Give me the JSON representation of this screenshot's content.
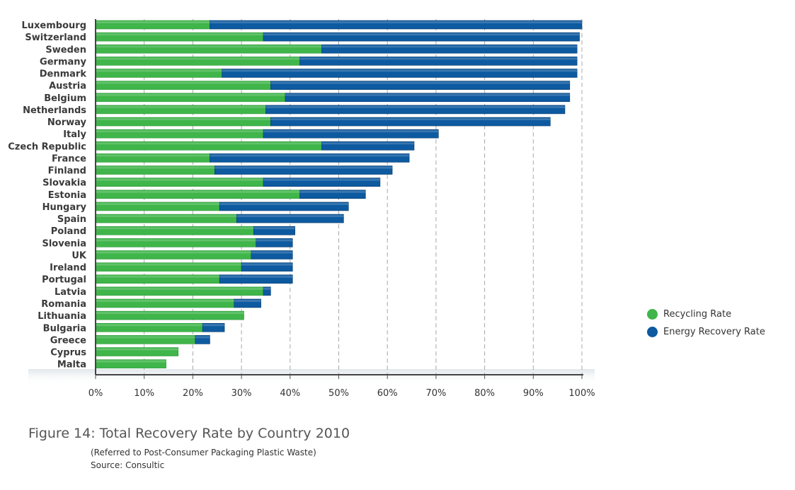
{
  "chart_data": {
    "type": "bar",
    "orientation": "horizontal",
    "stacked": true,
    "categories": [
      "Luxembourg",
      "Switzerland",
      "Sweden",
      "Germany",
      "Denmark",
      "Austria",
      "Belgium",
      "Netherlands",
      "Norway",
      "Italy",
      "Czech Republic",
      "France",
      "Finland",
      "Slovakia",
      "Estonia",
      "Hungary",
      "Spain",
      "Poland",
      "Slovenia",
      "UK",
      "Ireland",
      "Portugal",
      "Latvia",
      "Romania",
      "Lithuania",
      "Bulgaria",
      "Greece",
      "Cyprus",
      "Malta"
    ],
    "series": [
      {
        "name": "Recycling Rate",
        "color": "#3fb54a",
        "values": [
          23.5,
          34.5,
          46.5,
          42,
          26,
          36,
          39,
          35,
          36,
          34.5,
          46.5,
          23.5,
          24.5,
          34.5,
          42,
          25.5,
          29,
          32.5,
          33,
          32,
          30,
          25.5,
          34.5,
          28.5,
          30.5,
          22,
          20.5,
          17,
          14.5
        ]
      },
      {
        "name": "Energy Recovery Rate",
        "color": "#0d5aa0",
        "values": [
          76.5,
          65,
          52.5,
          57,
          73,
          61.5,
          58.5,
          61.5,
          57.5,
          36,
          19,
          41,
          36.5,
          24,
          13.5,
          26.5,
          22,
          8.5,
          7.5,
          8.5,
          10.5,
          15,
          1.5,
          5.5,
          0,
          4.5,
          3,
          0,
          0
        ]
      }
    ],
    "x_ticks": [
      "0%",
      "10%",
      "20%",
      "30%",
      "40%",
      "50%",
      "60%",
      "70%",
      "80%",
      "90%",
      "100%"
    ],
    "xlim": [
      0,
      100
    ],
    "grid": "vertical-dashed",
    "legend_position": "right"
  },
  "caption": {
    "title": "Figure 14: Total Recovery Rate by Country 2010",
    "note": "(Referred to Post-Consumer Packaging Plastic Waste)",
    "source": "Source: Consultic"
  }
}
